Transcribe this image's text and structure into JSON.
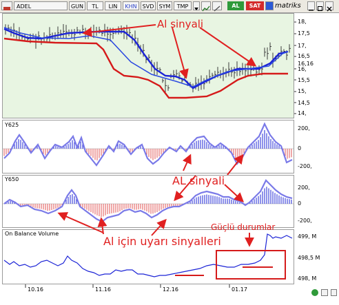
{
  "toolbar": {
    "symbol": "ADEL",
    "buttons": [
      "GUN",
      "TL",
      "LIN",
      "KHN",
      "SVD",
      "SYM",
      "TMP"
    ],
    "buy_label": "AL",
    "sell_label": "SAT",
    "brand": "matriks"
  },
  "price_panel": {
    "y_ticks": [
      "18,",
      "17,5",
      "17,",
      "16,5",
      "16,16",
      "16,",
      "15,5",
      "15,",
      "14,5",
      "14,"
    ]
  },
  "y625_panel": {
    "title": "Y625",
    "y_ticks": [
      "200,",
      "0",
      "-200,"
    ]
  },
  "y650_panel": {
    "title": "Y650",
    "y_ticks": [
      "200,",
      "0",
      "-200,"
    ]
  },
  "obv_panel": {
    "title": "On Balance Volume",
    "y_ticks": [
      "499, M",
      "498,5 M",
      "498, M"
    ]
  },
  "x_ticks": [
    "10.16",
    "11.16",
    "12.16",
    "01.17"
  ],
  "annotations": {
    "al_sinyali_top": "Al sinyali",
    "al_sinyali_mid": "AL sinyali",
    "uyari": "Al için uyarı sinyalleri",
    "guclu": "Güçlü durumlar"
  },
  "colors": {
    "price_bg": "#e8f5e2",
    "blue": "#1b23d6",
    "red": "#d51a1a",
    "indicator_line": "#7a7ae8",
    "annotation": "#e02020"
  }
}
